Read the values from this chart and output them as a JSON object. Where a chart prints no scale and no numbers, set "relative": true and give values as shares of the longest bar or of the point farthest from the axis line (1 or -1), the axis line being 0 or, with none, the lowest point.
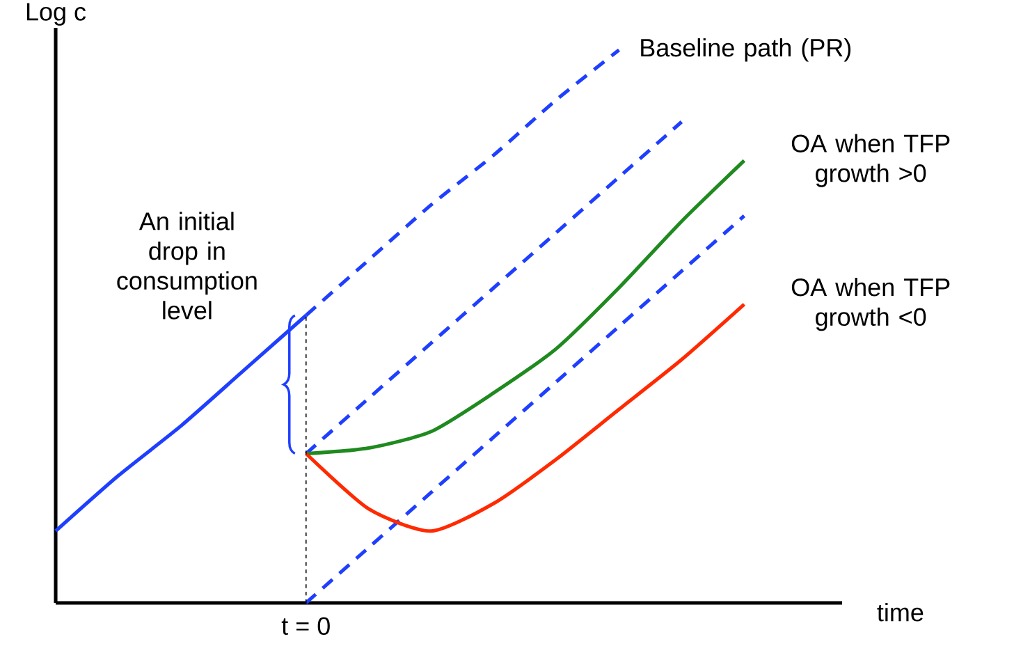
{
  "chart_data": {
    "type": "line",
    "relative": true,
    "xlabel": "time",
    "ylabel": "Log c",
    "categories": [
      null,
      null,
      null,
      null,
      null,
      null,
      null,
      null,
      null,
      null,
      null,
      null,
      null
    ],
    "series": [
      {
        "color": "#1f3fff",
        "line_style": "solid",
        "values": [
          0.13,
          0.23,
          0.32,
          0.42,
          0.52,
          null,
          null,
          null,
          null,
          null,
          null,
          null,
          null
        ]
      },
      {
        "name": "Baseline path (PR)",
        "color": "#1f3fff",
        "line_style": "dashed",
        "values": [
          null,
          null,
          null,
          null,
          0.52,
          0.62,
          0.72,
          0.81,
          0.91,
          1.0,
          null,
          null,
          null
        ]
      },
      {
        "color": "#1f3fff",
        "line_style": "dashed",
        "values": [
          null,
          null,
          null,
          null,
          0.27,
          0.37,
          0.47,
          0.57,
          0.67,
          0.77,
          0.87,
          null,
          null
        ]
      },
      {
        "color": "#1f3fff",
        "line_style": "dashed",
        "values": [
          null,
          null,
          null,
          null,
          0.0,
          0.1,
          0.2,
          0.3,
          0.4,
          0.5,
          0.6,
          0.7,
          null
        ]
      },
      {
        "name": "OA when TFP growth >0",
        "color": "#1f8a1f",
        "line_style": "solid",
        "values": [
          null,
          null,
          null,
          null,
          0.27,
          0.28,
          0.31,
          0.38,
          0.46,
          0.57,
          0.69,
          0.8,
          null
        ]
      },
      {
        "name": "OA when TFP growth <0",
        "color": "#ff2a00",
        "line_style": "solid",
        "values": [
          null,
          null,
          null,
          null,
          0.27,
          0.17,
          0.13,
          0.18,
          0.26,
          0.35,
          0.44,
          0.54,
          null
        ]
      }
    ],
    "annotations": [
      "An initial drop in consumption level",
      "t = 0"
    ]
  }
}
